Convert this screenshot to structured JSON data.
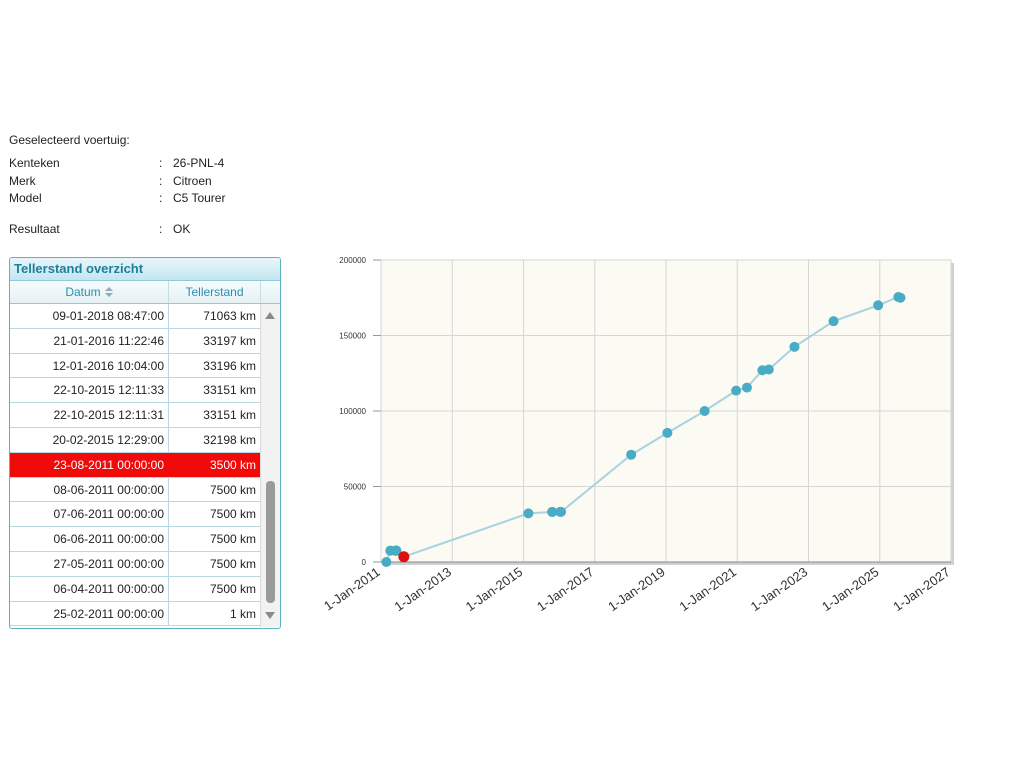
{
  "vehicle": {
    "heading": "Geselecteerd voertuig:",
    "separator": ":",
    "fields": [
      {
        "label": "Kenteken",
        "value": "26-PNL-4"
      },
      {
        "label": "Merk",
        "value": "Citroen"
      },
      {
        "label": "Model",
        "value": "C5 Tourer"
      }
    ],
    "result": {
      "label": "Resultaat",
      "value": "OK"
    }
  },
  "table": {
    "title": "Tellerstand overzicht",
    "col_date": "Datum",
    "col_reading": "Tellerstand",
    "sort_icon": "sort-icon",
    "selected_index": 6,
    "rows": [
      {
        "date": "09-01-2018 08:47:00",
        "reading": "71063 km"
      },
      {
        "date": "21-01-2016 11:22:46",
        "reading": "33197 km"
      },
      {
        "date": "12-01-2016 10:04:00",
        "reading": "33196 km"
      },
      {
        "date": "22-10-2015 12:11:33",
        "reading": "33151 km"
      },
      {
        "date": "22-10-2015 12:11:31",
        "reading": "33151 km"
      },
      {
        "date": "20-02-2015 12:29:00",
        "reading": "32198 km"
      },
      {
        "date": "23-08-2011 00:00:00",
        "reading": "3500 km"
      },
      {
        "date": "08-06-2011 00:00:00",
        "reading": "7500 km"
      },
      {
        "date": "07-06-2011 00:00:00",
        "reading": "7500 km"
      },
      {
        "date": "06-06-2011 00:00:00",
        "reading": "7500 km"
      },
      {
        "date": "27-05-2011 00:00:00",
        "reading": "7500 km"
      },
      {
        "date": "06-04-2011 00:00:00",
        "reading": "7500 km"
      },
      {
        "date": "25-02-2011 00:00:00",
        "reading": "1 km"
      }
    ]
  },
  "colors": {
    "accent": "#1e7f9b",
    "selected_row": "#f00a0a",
    "line": "#a9d3df",
    "point": "#4aabc4",
    "anomaly_point": "#dd1111",
    "plot_bg": "#fbfaf3"
  },
  "chart_data": {
    "type": "scatter",
    "x_format": "date",
    "xlim": [
      "2011-01-01",
      "2027-01-01"
    ],
    "ylim": [
      0,
      200000
    ],
    "y_ticks": [
      0,
      50000,
      100000,
      150000,
      200000
    ],
    "x_ticks": [
      "1-Jan-2011",
      "1-Jan-2013",
      "1-Jan-2015",
      "1-Jan-2017",
      "1-Jan-2019",
      "1-Jan-2021",
      "1-Jan-2023",
      "1-Jan-2025",
      "1-Jan-2027"
    ],
    "grid": true,
    "series": [
      {
        "points": [
          {
            "x": "2011-02-25",
            "y": 1
          },
          {
            "x": "2011-04-06",
            "y": 7500
          },
          {
            "x": "2011-05-27",
            "y": 7500
          },
          {
            "x": "2011-06-06",
            "y": 7500
          },
          {
            "x": "2011-06-07",
            "y": 7500
          },
          {
            "x": "2011-06-08",
            "y": 7500
          },
          {
            "x": "2011-08-23",
            "y": 3500,
            "highlight": true
          },
          {
            "x": "2015-02-20",
            "y": 32198
          },
          {
            "x": "2015-10-22",
            "y": 33151
          },
          {
            "x": "2015-10-22",
            "y": 33151
          },
          {
            "x": "2016-01-12",
            "y": 33196
          },
          {
            "x": "2016-01-21",
            "y": 33197
          },
          {
            "x": "2018-01-09",
            "y": 71063
          },
          {
            "x": "2019-01-15",
            "y": 85500
          },
          {
            "x": "2020-02-01",
            "y": 100000
          },
          {
            "x": "2020-12-20",
            "y": 113500
          },
          {
            "x": "2021-04-10",
            "y": 115500
          },
          {
            "x": "2021-09-15",
            "y": 127000
          },
          {
            "x": "2021-11-20",
            "y": 127500
          },
          {
            "x": "2022-08-10",
            "y": 142500
          },
          {
            "x": "2023-09-15",
            "y": 159500
          },
          {
            "x": "2024-12-15",
            "y": 170000
          },
          {
            "x": "2025-07-10",
            "y": 175500
          },
          {
            "x": "2025-08-01",
            "y": 175000
          }
        ]
      }
    ]
  }
}
